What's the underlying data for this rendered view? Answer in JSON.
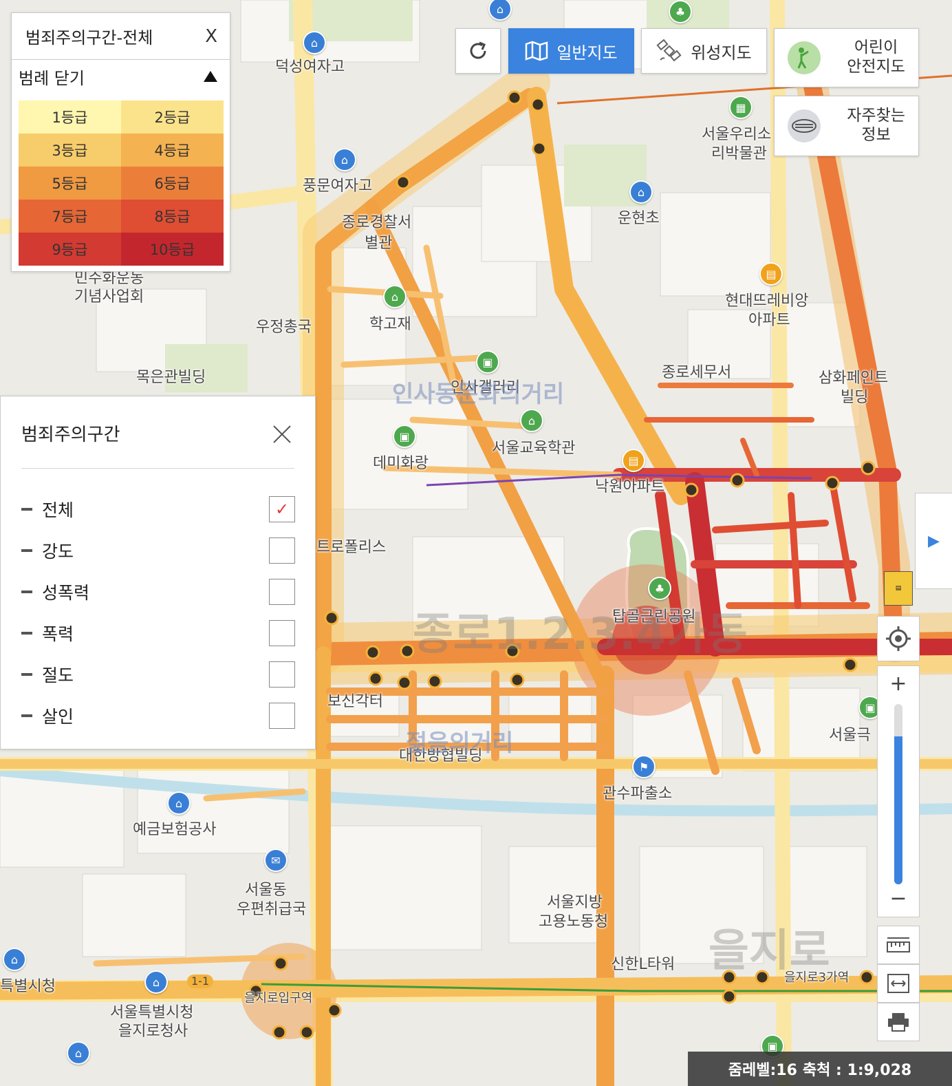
{
  "legend": {
    "title": "범죄주의구간-전체",
    "close_label": "X",
    "toggle_label": "범례 닫기",
    "grades": [
      {
        "label": "1등급",
        "color": "#fff6b0"
      },
      {
        "label": "2등급",
        "color": "#fbe38c"
      },
      {
        "label": "3등급",
        "color": "#f7cc6a"
      },
      {
        "label": "4등급",
        "color": "#f4b250"
      },
      {
        "label": "5등급",
        "color": "#f09a42"
      },
      {
        "label": "6등급",
        "color": "#eb7f3a"
      },
      {
        "label": "7등급",
        "color": "#e66636"
      },
      {
        "label": "8등급",
        "color": "#df4d33"
      },
      {
        "label": "9등급",
        "color": "#d33a32"
      },
      {
        "label": "10등급",
        "color": "#c4262e"
      }
    ]
  },
  "filter": {
    "title": "범죄주의구간",
    "options": [
      {
        "label": "전체",
        "checked": true
      },
      {
        "label": "강도",
        "checked": false
      },
      {
        "label": "성폭력",
        "checked": false
      },
      {
        "label": "폭력",
        "checked": false
      },
      {
        "label": "절도",
        "checked": false
      },
      {
        "label": "살인",
        "checked": false
      }
    ]
  },
  "toolbar": {
    "general_map": "일반지도",
    "satellite_map": "위성지도",
    "kids_map_line1": "어린이",
    "kids_map_line2": "안전지도",
    "faq_line1": "자주찾는",
    "faq_line2": "정보"
  },
  "map_labels": {
    "l1": "덕성여자고",
    "l2": "풍문여자고",
    "l3": "종로경찰서",
    "l4": "별관",
    "l5": "운현초",
    "l6": "서울우리소",
    "l7": "리박물관",
    "l8": "학고재",
    "l9": "현대뜨레비앙",
    "l10": "아파트",
    "l11": "민주화운동",
    "l12": "기념사업회",
    "l13": "우정총국",
    "l14": "목은관빌딩",
    "l15": "인사갤러리",
    "l16": "종로세무서",
    "l17": "삼화페인트",
    "l18": "빌딩",
    "l19": "데미화랑",
    "l20": "서울교육학관",
    "l21": "낙원아파트",
    "l22": "트로폴리스",
    "l23": "탑골근린공원",
    "l24": "보신각터",
    "l25": "대한방협빌딩",
    "l26": "관수파출소",
    "l27": "예금보험공사",
    "l28": "서울동",
    "l29": "우편취급국",
    "l30": "서울지방",
    "l31": "고용노동청",
    "l32": "신한L타워",
    "l33": "특별시청",
    "l34": "서울특별시청",
    "l35": "을지로청사",
    "l36": "을지로입구역",
    "l37": "을지로3가역",
    "l38": "서울극",
    "l39": "1-1",
    "d1": "인사동문화의거리",
    "d2": "종로1.2.3.4가동",
    "d3": "젊음의거리",
    "d4": "을지로"
  },
  "scale": {
    "zoom_text": "줌레벨:16",
    "scale_text": "축척 : 1:9,028"
  },
  "zoom_level_fraction": 0.82
}
